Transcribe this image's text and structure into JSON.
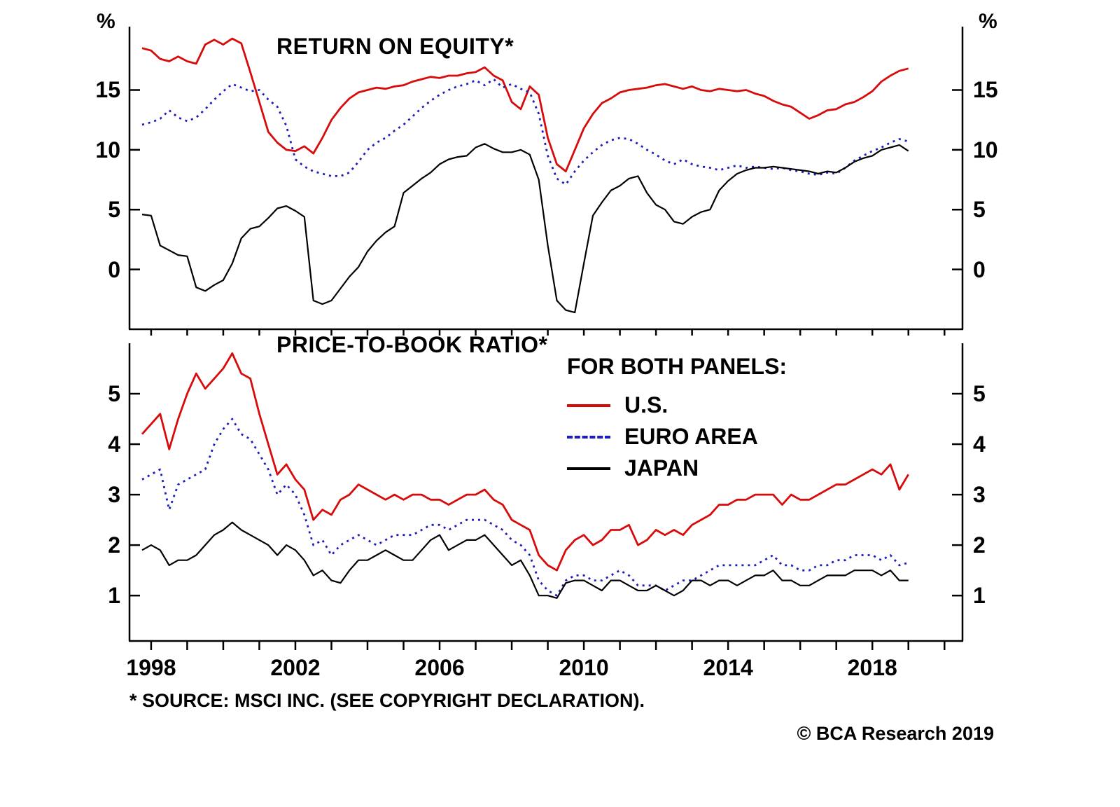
{
  "header": {
    "unit_left": "%",
    "unit_right": "%"
  },
  "legend": {
    "title": "FOR BOTH PANELS:",
    "items": [
      {
        "label": "U.S.",
        "color": "#d80b0b",
        "dash": "solid"
      },
      {
        "label": "EURO AREA",
        "color": "#1d1dbb",
        "dash": "dashed"
      },
      {
        "label": "JAPAN",
        "color": "#000000",
        "dash": "solid"
      }
    ]
  },
  "footer": {
    "source_note": "* SOURCE: MSCI INC. (SEE COPYRIGHT DECLARATION).",
    "copyright": "© BCA Research 2019"
  },
  "chart_data": [
    {
      "type": "line",
      "title": "RETURN ON EQUITY*",
      "ylabel": "%",
      "xlim": [
        1997.4,
        2020.5
      ],
      "ylim": [
        -5,
        20.3
      ],
      "x_start": 1997.75,
      "x_step": 0.25,
      "yticks": [
        0,
        5,
        10,
        15
      ],
      "xticks_minor": [
        1998,
        1999,
        2000,
        2001,
        2002,
        2003,
        2004,
        2005,
        2006,
        2007,
        2008,
        2009,
        2010,
        2011,
        2012,
        2013,
        2014,
        2015,
        2016,
        2017,
        2018,
        2019,
        2020
      ],
      "xtick_labels": [],
      "grid": false,
      "series": [
        {
          "name": "U.S.",
          "color": "#d80b0b",
          "dash": "none",
          "width": 2.8,
          "values": [
            18.5,
            18.3,
            17.6,
            17.4,
            17.8,
            17.4,
            17.2,
            18.8,
            19.2,
            18.8,
            19.3,
            18.9,
            16.5,
            14.0,
            11.5,
            10.6,
            10.0,
            9.9,
            10.3,
            9.7,
            11.0,
            12.5,
            13.5,
            14.3,
            14.8,
            15.0,
            15.2,
            15.1,
            15.3,
            15.4,
            15.7,
            15.9,
            16.1,
            16.0,
            16.2,
            16.2,
            16.4,
            16.5,
            16.9,
            16.2,
            15.8,
            14.0,
            13.4,
            15.3,
            14.6,
            11.0,
            8.8,
            8.2,
            10.0,
            11.8,
            13.0,
            13.9,
            14.3,
            14.8,
            15.0,
            15.1,
            15.2,
            15.4,
            15.5,
            15.3,
            15.1,
            15.3,
            15.0,
            14.9,
            15.1,
            15.0,
            14.9,
            15.0,
            14.7,
            14.5,
            14.1,
            13.8,
            13.6,
            13.1,
            12.6,
            12.9,
            13.3,
            13.4,
            13.8,
            14.0,
            14.4,
            14.9,
            15.7,
            16.2,
            16.6,
            16.8
          ]
        },
        {
          "name": "EURO AREA",
          "color": "#1d1dbb",
          "dash": "3 6",
          "width": 2.8,
          "values": [
            12.1,
            12.3,
            12.6,
            13.3,
            12.7,
            12.4,
            12.7,
            13.4,
            14.2,
            14.9,
            15.5,
            15.2,
            14.9,
            15.0,
            14.2,
            13.6,
            12.0,
            9.2,
            8.6,
            8.2,
            8.0,
            7.8,
            7.8,
            8.1,
            9.0,
            10.0,
            10.6,
            11.0,
            11.6,
            12.1,
            12.8,
            13.5,
            14.1,
            14.6,
            15.0,
            15.3,
            15.5,
            15.8,
            15.4,
            15.9,
            15.2,
            15.5,
            15.1,
            14.8,
            13.0,
            9.5,
            7.6,
            7.1,
            8.2,
            9.1,
            9.8,
            10.4,
            10.8,
            11.0,
            10.9,
            10.5,
            10.0,
            9.6,
            9.1,
            8.8,
            9.2,
            8.8,
            8.6,
            8.5,
            8.3,
            8.5,
            8.7,
            8.5,
            8.6,
            8.5,
            8.4,
            8.5,
            8.3,
            8.2,
            8.0,
            7.9,
            8.1,
            8.0,
            8.5,
            9.1,
            9.5,
            9.9,
            10.2,
            10.6,
            10.9,
            10.7
          ]
        },
        {
          "name": "JAPAN",
          "color": "#000000",
          "dash": "none",
          "width": 2.2,
          "values": [
            4.6,
            4.5,
            2.0,
            1.6,
            1.2,
            1.1,
            -1.5,
            -1.8,
            -1.3,
            -0.9,
            0.5,
            2.6,
            3.4,
            3.6,
            4.3,
            5.1,
            5.3,
            4.9,
            4.4,
            -2.6,
            -2.9,
            -2.6,
            -1.6,
            -0.6,
            0.2,
            1.5,
            2.4,
            3.1,
            3.6,
            6.4,
            7.0,
            7.6,
            8.1,
            8.8,
            9.2,
            9.4,
            9.5,
            10.2,
            10.5,
            10.1,
            9.8,
            9.8,
            10.0,
            9.6,
            7.5,
            2.0,
            -2.6,
            -3.4,
            -3.6,
            0.5,
            4.5,
            5.6,
            6.6,
            7.0,
            7.6,
            7.8,
            6.4,
            5.4,
            5.0,
            4.0,
            3.8,
            4.4,
            4.8,
            5.0,
            6.6,
            7.4,
            8.0,
            8.3,
            8.5,
            8.5,
            8.6,
            8.5,
            8.4,
            8.3,
            8.2,
            8.0,
            8.2,
            8.1,
            8.5,
            9.0,
            9.3,
            9.5,
            10.0,
            10.2,
            10.4,
            9.9
          ]
        }
      ]
    },
    {
      "type": "line",
      "title": "PRICE-TO-BOOK RATIO*",
      "xlim": [
        1997.4,
        2020.5
      ],
      "ylim": [
        0.1,
        6.0
      ],
      "x_start": 1997.75,
      "x_step": 0.25,
      "yticks": [
        1,
        2,
        3,
        4,
        5
      ],
      "xticks_minor": [
        1998,
        1999,
        2000,
        2001,
        2002,
        2003,
        2004,
        2005,
        2006,
        2007,
        2008,
        2009,
        2010,
        2011,
        2012,
        2013,
        2014,
        2015,
        2016,
        2017,
        2018,
        2019,
        2020
      ],
      "xtick_labels": [
        1998,
        2002,
        2006,
        2010,
        2014,
        2018
      ],
      "grid": false,
      "series": [
        {
          "name": "U.S.",
          "color": "#d80b0b",
          "dash": "none",
          "width": 2.8,
          "values": [
            4.2,
            4.4,
            4.6,
            3.9,
            4.5,
            5.0,
            5.4,
            5.1,
            5.3,
            5.5,
            5.8,
            5.4,
            5.3,
            4.6,
            4.0,
            3.4,
            3.6,
            3.3,
            3.1,
            2.5,
            2.7,
            2.6,
            2.9,
            3.0,
            3.2,
            3.1,
            3.0,
            2.9,
            3.0,
            2.9,
            3.0,
            3.0,
            2.9,
            2.9,
            2.8,
            2.9,
            3.0,
            3.0,
            3.1,
            2.9,
            2.8,
            2.5,
            2.4,
            2.3,
            1.8,
            1.6,
            1.5,
            1.9,
            2.1,
            2.2,
            2.0,
            2.1,
            2.3,
            2.3,
            2.4,
            2.0,
            2.1,
            2.3,
            2.2,
            2.3,
            2.2,
            2.4,
            2.5,
            2.6,
            2.8,
            2.8,
            2.9,
            2.9,
            3.0,
            3.0,
            3.0,
            2.8,
            3.0,
            2.9,
            2.9,
            3.0,
            3.1,
            3.2,
            3.2,
            3.3,
            3.4,
            3.5,
            3.4,
            3.6,
            3.1,
            3.4
          ]
        },
        {
          "name": "EURO AREA",
          "color": "#1d1dbb",
          "dash": "3 6",
          "width": 2.8,
          "values": [
            3.3,
            3.4,
            3.5,
            2.7,
            3.2,
            3.3,
            3.4,
            3.5,
            4.0,
            4.3,
            4.5,
            4.2,
            4.1,
            3.8,
            3.5,
            3.0,
            3.2,
            3.0,
            2.6,
            2.0,
            2.1,
            1.8,
            2.0,
            2.1,
            2.2,
            2.1,
            2.0,
            2.1,
            2.2,
            2.2,
            2.2,
            2.3,
            2.4,
            2.4,
            2.3,
            2.4,
            2.5,
            2.5,
            2.5,
            2.4,
            2.3,
            2.1,
            2.0,
            1.8,
            1.3,
            1.1,
            1.0,
            1.3,
            1.4,
            1.4,
            1.3,
            1.3,
            1.4,
            1.5,
            1.4,
            1.2,
            1.2,
            1.2,
            1.1,
            1.2,
            1.3,
            1.3,
            1.4,
            1.5,
            1.6,
            1.6,
            1.6,
            1.6,
            1.6,
            1.7,
            1.8,
            1.6,
            1.6,
            1.5,
            1.5,
            1.6,
            1.6,
            1.7,
            1.7,
            1.8,
            1.8,
            1.8,
            1.7,
            1.8,
            1.6,
            1.65
          ]
        },
        {
          "name": "JAPAN",
          "color": "#000000",
          "dash": "none",
          "width": 2.2,
          "values": [
            1.9,
            2.0,
            1.9,
            1.6,
            1.7,
            1.7,
            1.8,
            2.0,
            2.2,
            2.3,
            2.45,
            2.3,
            2.2,
            2.1,
            2.0,
            1.8,
            2.0,
            1.9,
            1.7,
            1.4,
            1.5,
            1.3,
            1.25,
            1.5,
            1.7,
            1.7,
            1.8,
            1.9,
            1.8,
            1.7,
            1.7,
            1.9,
            2.1,
            2.2,
            1.9,
            2.0,
            2.1,
            2.1,
            2.2,
            2.0,
            1.8,
            1.6,
            1.7,
            1.4,
            1.0,
            1.0,
            0.95,
            1.25,
            1.3,
            1.3,
            1.2,
            1.1,
            1.3,
            1.3,
            1.2,
            1.1,
            1.1,
            1.2,
            1.1,
            1.0,
            1.1,
            1.3,
            1.3,
            1.2,
            1.3,
            1.3,
            1.2,
            1.3,
            1.4,
            1.4,
            1.5,
            1.3,
            1.3,
            1.2,
            1.2,
            1.3,
            1.4,
            1.4,
            1.4,
            1.5,
            1.5,
            1.5,
            1.4,
            1.5,
            1.3,
            1.3
          ]
        }
      ]
    }
  ]
}
